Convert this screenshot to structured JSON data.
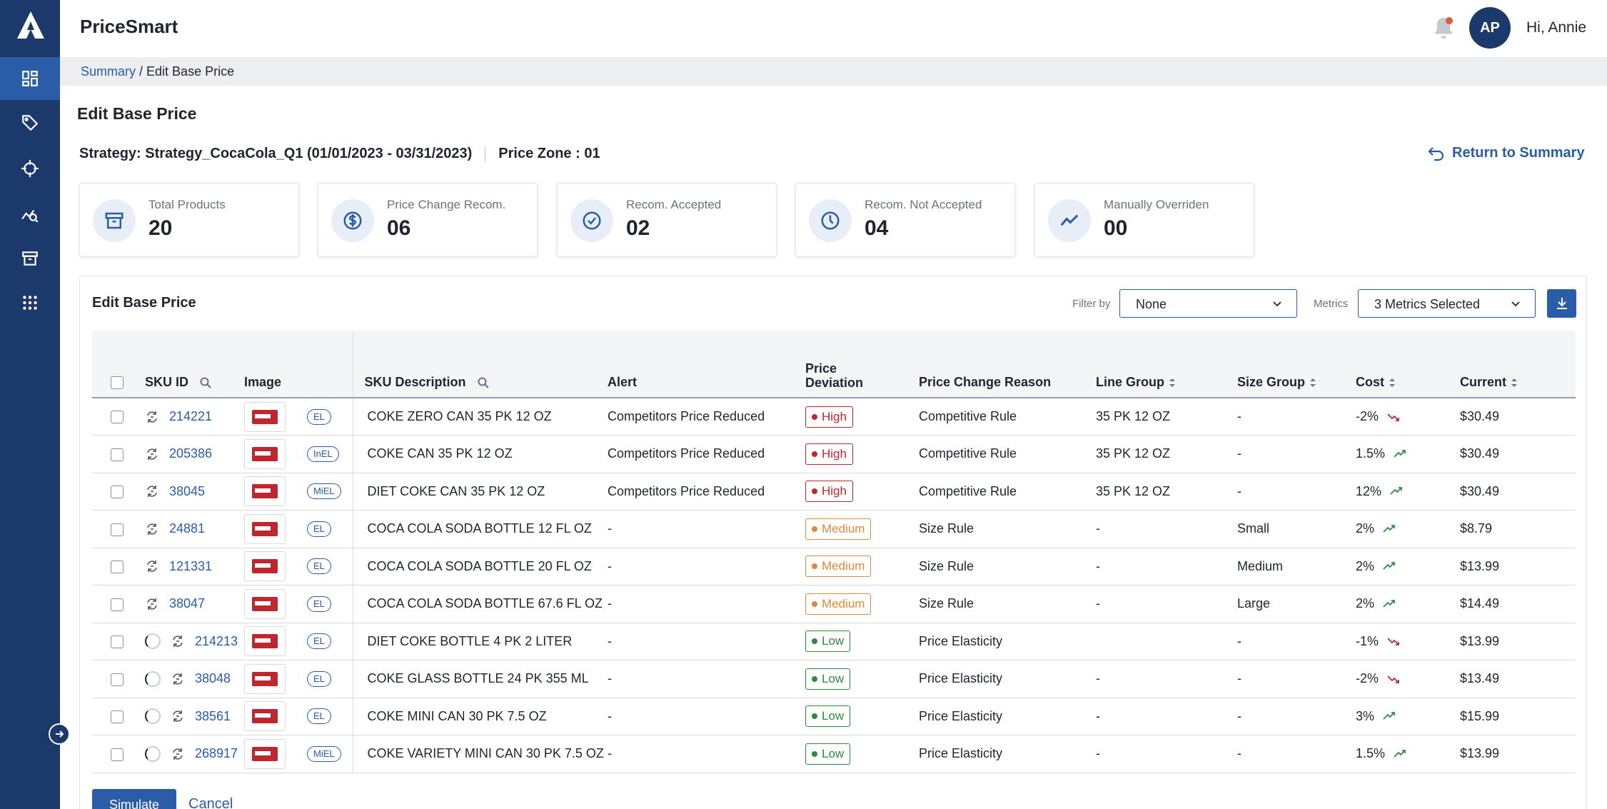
{
  "app": {
    "title": "PriceSmart"
  },
  "user": {
    "initials": "AP",
    "greeting": "Hi, Annie"
  },
  "breadcrumb": {
    "root": "Summary",
    "separator": " / ",
    "current": "Edit Base Price"
  },
  "page": {
    "title": "Edit Base Price",
    "strategy": "Strategy: Strategy_CocaCola_Q1 (01/01/2023 - 03/31/2023)",
    "price_zone": "Price Zone : 01",
    "return_link": "Return to Summary"
  },
  "kpis": [
    {
      "label": "Total Products",
      "value": "20",
      "icon": "archive-icon"
    },
    {
      "label": "Price Change Recom.",
      "value": "06",
      "icon": "dollar-circle-icon"
    },
    {
      "label": "Recom. Accepted",
      "value": "02",
      "icon": "check-circle-icon"
    },
    {
      "label": "Recom. Not Accepted",
      "value": "04",
      "icon": "clock-icon"
    },
    {
      "label": "Manually Overriden",
      "value": "00",
      "icon": "trend-line-icon"
    }
  ],
  "panel": {
    "title": "Edit Base Price",
    "filter_label": "Filter by",
    "filter_value": "None",
    "metrics_label": "Metrics",
    "metrics_value": "3 Metrics Selected"
  },
  "table": {
    "columns": {
      "sku_id": "SKU ID",
      "image": "Image",
      "sku_description": "SKU Description",
      "alert": "Alert",
      "price_deviation": "Price\nDeviation",
      "price_change_reason": "Price Change Reason",
      "line_group": "Line Group",
      "size_group": "Size Group",
      "cost": "Cost",
      "current": "Current"
    },
    "rows": [
      {
        "sku": "214221",
        "tag": "EL",
        "desc": "COKE ZERO CAN 35 PK 12 OZ",
        "alert": "Competitors Price Reduced",
        "deviation": "High",
        "reason": "Competitive Rule",
        "line_group": "35  PK 12 OZ",
        "size_group": "-",
        "cost": "-2%",
        "trend": "down",
        "current": "$30.49",
        "spinner": false
      },
      {
        "sku": "205386",
        "tag": "InEL",
        "desc": "COKE CAN 35 PK 12 OZ",
        "alert": "Competitors Price Reduced",
        "deviation": "High",
        "reason": "Competitive Rule",
        "line_group": "35  PK 12 OZ",
        "size_group": "-",
        "cost": "1.5%",
        "trend": "up",
        "current": "$30.49",
        "spinner": false
      },
      {
        "sku": "38045",
        "tag": "MiEL",
        "desc": "DIET COKE CAN 35 PK 12 OZ",
        "alert": "Competitors Price Reduced",
        "deviation": "High",
        "reason": "Competitive Rule",
        "line_group": "35  PK 12 OZ",
        "size_group": "-",
        "cost": "12%",
        "trend": "up",
        "current": "$30.49",
        "spinner": false
      },
      {
        "sku": "24881",
        "tag": "EL",
        "desc": "COCA COLA SODA BOTTLE 12 FL OZ",
        "alert": "-",
        "deviation": "Medium",
        "reason": "Size Rule",
        "line_group": "-",
        "size_group": "Small",
        "cost": "2%",
        "trend": "up",
        "current": "$8.79",
        "spinner": false
      },
      {
        "sku": "121331",
        "tag": "EL",
        "desc": "COCA COLA SODA BOTTLE 20 FL OZ",
        "alert": "-",
        "deviation": "Medium",
        "reason": "Size Rule",
        "line_group": "-",
        "size_group": "Medium",
        "cost": "2%",
        "trend": "up",
        "current": "$13.99",
        "spinner": false
      },
      {
        "sku": "38047",
        "tag": "EL",
        "desc": "COCA COLA SODA BOTTLE 67.6 FL OZ",
        "alert": "-",
        "deviation": "Medium",
        "reason": "Size Rule",
        "line_group": "-",
        "size_group": "Large",
        "cost": "2%",
        "trend": "up",
        "current": "$14.49",
        "spinner": false
      },
      {
        "sku": "214213",
        "tag": "EL",
        "desc": "DIET COKE BOTTLE 4 PK 2 LITER",
        "alert": "-",
        "deviation": "Low",
        "reason": "Price Elasticity",
        "line_group": "",
        "size_group": "-",
        "cost": "-1%",
        "trend": "down",
        "current": "$13.99",
        "spinner": true
      },
      {
        "sku": "38048",
        "tag": "EL",
        "desc": "COKE GLASS BOTTLE 24 PK 355 ML",
        "alert": "-",
        "deviation": "Low",
        "reason": "Price Elasticity",
        "line_group": "-",
        "size_group": "-",
        "cost": "-2%",
        "trend": "down",
        "current": "$13.49",
        "spinner": true
      },
      {
        "sku": "38561",
        "tag": "EL",
        "desc": "COKE MINI CAN 30 PK 7.5 OZ",
        "alert": "-",
        "deviation": "Low",
        "reason": "Price Elasticity",
        "line_group": "-",
        "size_group": "-",
        "cost": "3%",
        "trend": "up",
        "current": "$15.99",
        "spinner": true
      },
      {
        "sku": "268917",
        "tag": "MiEL",
        "desc": "COKE VARIETY MINI CAN 30 PK 7.5 OZ",
        "alert": "-",
        "deviation": "Low",
        "reason": "Price Elasticity",
        "line_group": "-",
        "size_group": "-",
        "cost": "1.5%",
        "trend": "up",
        "current": "$13.99",
        "spinner": true
      }
    ]
  },
  "actions": {
    "simulate": "Simulate",
    "cancel": "Cancel"
  },
  "colors": {
    "brand": "#1b3a6b",
    "accent": "#2a5ca8",
    "high": "#c0262d",
    "medium": "#e0893a",
    "low": "#2e8b3e"
  }
}
